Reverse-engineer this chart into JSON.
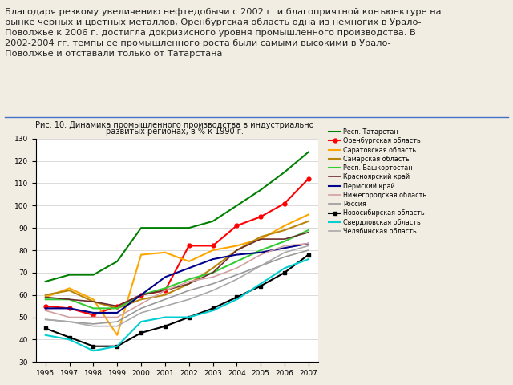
{
  "title_line1": "Рис. 10. Динамика промышленного производства в индустриально",
  "title_line2": "развитых регионах, в % к 1990 г.",
  "years": [
    1996,
    1997,
    1998,
    1999,
    2000,
    2001,
    2002,
    2003,
    2004,
    2005,
    2006,
    2007
  ],
  "series": [
    {
      "name": "Респ. Татарстан",
      "color": "#008000",
      "marker": null,
      "linewidth": 1.5,
      "values": [
        66,
        69,
        69,
        75,
        90,
        90,
        90,
        93,
        100,
        107,
        115,
        124
      ]
    },
    {
      "name": "Оренбургская область",
      "color": "#ff0000",
      "marker": "o",
      "linewidth": 1.5,
      "values": [
        55,
        54,
        51,
        55,
        60,
        62,
        82,
        82,
        91,
        95,
        101,
        112
      ]
    },
    {
      "name": "Саратовская область",
      "color": "#ffa500",
      "marker": null,
      "linewidth": 1.5,
      "values": [
        59,
        63,
        58,
        42,
        78,
        79,
        75,
        80,
        82,
        85,
        91,
        96
      ]
    },
    {
      "name": "Самарская область",
      "color": "#b8860b",
      "marker": null,
      "linewidth": 1.5,
      "values": [
        60,
        62,
        57,
        54,
        58,
        60,
        65,
        72,
        80,
        86,
        89,
        93
      ]
    },
    {
      "name": "Респ. Башкортостан",
      "color": "#32cd32",
      "marker": null,
      "linewidth": 1.5,
      "values": [
        58,
        58,
        54,
        54,
        60,
        63,
        67,
        70,
        75,
        80,
        84,
        89
      ]
    },
    {
      "name": "Красноярский край",
      "color": "#6b2d2d",
      "marker": null,
      "linewidth": 1.2,
      "values": [
        59,
        58,
        57,
        55,
        60,
        62,
        65,
        70,
        80,
        85,
        85,
        88
      ]
    },
    {
      "name": "Пермский край",
      "color": "#00008b",
      "marker": null,
      "linewidth": 1.5,
      "values": [
        54,
        54,
        52,
        52,
        60,
        68,
        72,
        76,
        78,
        79,
        81,
        83
      ]
    },
    {
      "name": "Нижегородская область",
      "color": "#d2a0a0",
      "marker": null,
      "linewidth": 1.2,
      "values": [
        53,
        50,
        50,
        50,
        56,
        62,
        66,
        68,
        72,
        78,
        82,
        83
      ]
    },
    {
      "name": "Россия",
      "color": "#999999",
      "marker": null,
      "linewidth": 1.2,
      "values": [
        49,
        48,
        47,
        48,
        54,
        58,
        62,
        65,
        69,
        73,
        77,
        80
      ]
    },
    {
      "name": "Новосибирская область",
      "color": "#000000",
      "marker": "s",
      "linewidth": 1.5,
      "values": [
        45,
        41,
        37,
        37,
        43,
        46,
        50,
        54,
        59,
        64,
        70,
        78
      ]
    },
    {
      "name": "Свердловская область",
      "color": "#00ced1",
      "marker": null,
      "linewidth": 1.5,
      "values": [
        42,
        40,
        35,
        37,
        48,
        50,
        50,
        53,
        58,
        65,
        72,
        76
      ]
    },
    {
      "name": "Челябинская область",
      "color": "#a9a9a9",
      "marker": null,
      "linewidth": 1.2,
      "values": [
        49,
        48,
        46,
        46,
        52,
        55,
        58,
        62,
        67,
        73,
        79,
        82
      ]
    }
  ],
  "ylim": [
    30,
    130
  ],
  "yticks": [
    30,
    40,
    50,
    60,
    70,
    80,
    90,
    100,
    110,
    120,
    130
  ],
  "header_text": "Благодаря резкому увеличению нефтедобычи с 2002 г. и благоприятной конъюнктуре на\nрынке черных и цветных металлов, Оренбургская область одна из немногих в Урало-\nПоволжье к 2006 г. достигла докризисного уровня промышленного производства. В\n2002-2004 гг. темпы ее промышленного роста были самыми высокими в Урало-\nПоволжье и отставали только от Татарстана",
  "bg_color": "#f2ede3",
  "plot_bg": "#ffffff",
  "divider_color": "#4472c4"
}
